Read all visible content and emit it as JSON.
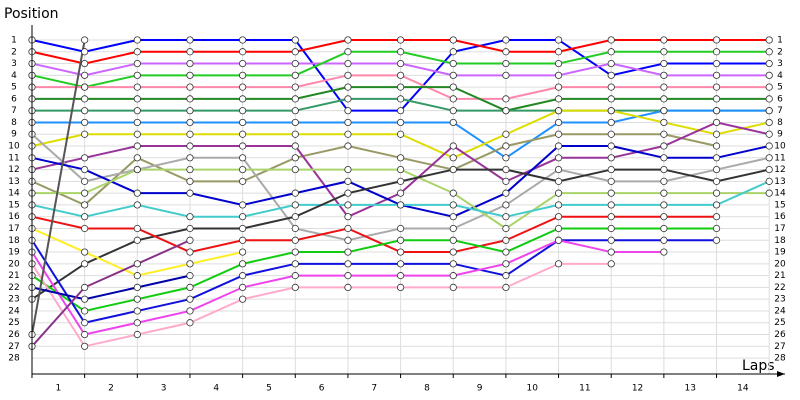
{
  "chart_data": {
    "type": "line",
    "title": "Position",
    "xlabel": "Laps",
    "x": [
      0,
      1,
      2,
      3,
      4,
      5,
      6,
      7,
      8,
      9,
      10,
      11,
      12,
      13,
      14
    ],
    "xlim": [
      0,
      14.3
    ],
    "xticks": [
      {
        "value": 0.5,
        "label": "1"
      },
      {
        "value": 1.5,
        "label": "2"
      },
      {
        "value": 2.5,
        "label": "3"
      },
      {
        "value": 3.5,
        "label": "4"
      },
      {
        "value": 4.5,
        "label": "5"
      },
      {
        "value": 5.5,
        "label": "6"
      },
      {
        "value": 6.5,
        "label": "7"
      },
      {
        "value": 7.5,
        "label": "8"
      },
      {
        "value": 8.5,
        "label": "9"
      },
      {
        "value": 9.5,
        "label": "10"
      },
      {
        "value": 10.5,
        "label": "11"
      },
      {
        "value": 11.5,
        "label": "12"
      },
      {
        "value": 12.5,
        "label": "13"
      },
      {
        "value": 13.5,
        "label": "14"
      }
    ],
    "ylim": [
      0,
      29.3
    ],
    "y_reversed": true,
    "yticks": [
      1,
      2,
      3,
      4,
      5,
      6,
      7,
      8,
      9,
      10,
      11,
      12,
      13,
      14,
      15,
      16,
      17,
      18,
      19,
      20,
      21,
      22,
      23,
      24,
      25,
      26,
      27,
      28
    ],
    "grid": true,
    "series": [
      {
        "color": "#0000ff",
        "values": [
          1,
          2,
          1,
          1,
          1,
          1,
          7,
          7,
          2,
          1,
          1,
          4,
          3,
          3,
          3
        ]
      },
      {
        "color": "#ff0000",
        "values": [
          2,
          3,
          2,
          2,
          2,
          2,
          1,
          1,
          1,
          2,
          2,
          1,
          1,
          1,
          1
        ]
      },
      {
        "color": "#cc66ff",
        "values": [
          3,
          4,
          3,
          3,
          3,
          3,
          3,
          3,
          4,
          4,
          4,
          3,
          4,
          4,
          4
        ]
      },
      {
        "color": "#22cc22",
        "values": [
          4,
          5,
          4,
          4,
          4,
          4,
          2,
          2,
          3,
          3,
          3,
          2,
          2,
          2,
          2
        ]
      },
      {
        "color": "#ff88aa",
        "values": [
          5,
          5,
          5,
          5,
          5,
          5,
          4,
          4,
          6,
          6,
          5,
          5,
          5,
          5,
          5
        ]
      },
      {
        "color": "#228822",
        "values": [
          6,
          6,
          6,
          6,
          6,
          6,
          5,
          5,
          5,
          7,
          6,
          6,
          6,
          6,
          6
        ]
      },
      {
        "color": "#339966",
        "values": [
          7,
          7,
          7,
          7,
          7,
          7,
          6,
          6,
          7,
          7,
          7,
          7,
          7,
          7,
          7
        ]
      },
      {
        "color": "#1e90ff",
        "values": [
          8,
          8,
          8,
          8,
          8,
          8,
          8,
          8,
          8,
          11,
          8,
          8,
          7,
          7,
          7
        ]
      },
      {
        "color": "#dddd00",
        "values": [
          10,
          9,
          9,
          9,
          9,
          9,
          9,
          9,
          11,
          9,
          7,
          7,
          8,
          9,
          8
        ]
      },
      {
        "color": "#999966",
        "values": [
          13,
          15,
          11,
          13,
          13,
          11,
          10,
          11,
          12,
          10,
          9,
          9,
          9,
          10,
          null
        ]
      },
      {
        "color": "#993399",
        "values": [
          12,
          11,
          10,
          10,
          10,
          10,
          16,
          14,
          10,
          13,
          11,
          11,
          10,
          8,
          9
        ]
      },
      {
        "color": "#aaaaaa",
        "values": [
          9,
          13,
          12,
          11,
          11,
          17,
          18,
          17,
          17,
          15,
          12,
          13,
          13,
          12,
          11
        ]
      },
      {
        "color": "#0000cc",
        "values": [
          11,
          12,
          14,
          14,
          15,
          14,
          13,
          15,
          16,
          14,
          10,
          10,
          11,
          11,
          10
        ]
      },
      {
        "color": "#aad46a",
        "values": [
          14,
          14,
          12,
          12,
          12,
          12,
          12,
          12,
          14,
          17,
          14,
          14,
          14,
          14,
          14
        ]
      },
      {
        "color": "#44cccc",
        "values": [
          15,
          16,
          15,
          16,
          16,
          15,
          15,
          15,
          15,
          16,
          15,
          15,
          15,
          15,
          13
        ]
      },
      {
        "color": "#333333",
        "values": [
          23,
          20,
          18,
          17,
          17,
          16,
          14,
          13,
          12,
          12,
          13,
          12,
          12,
          13,
          12
        ]
      },
      {
        "color": "#ee1111",
        "values": [
          16,
          17,
          17,
          19,
          18,
          18,
          17,
          19,
          19,
          18,
          16,
          16,
          16,
          16,
          null
        ]
      },
      {
        "color": "#11cc11",
        "values": [
          21,
          24,
          23,
          22,
          20,
          19,
          19,
          18,
          18,
          19,
          17,
          17,
          17,
          17,
          null
        ]
      },
      {
        "color": "#1111dd",
        "values": [
          18,
          25,
          24,
          23,
          21,
          20,
          20,
          20,
          20,
          21,
          18,
          18,
          18,
          18,
          null
        ]
      },
      {
        "color": "#ee44ee",
        "values": [
          19,
          26,
          25,
          24,
          22,
          21,
          21,
          21,
          21,
          20,
          18,
          19,
          19,
          null,
          null
        ]
      },
      {
        "color": "#ffaacc",
        "values": [
          20,
          27,
          26,
          25,
          23,
          22,
          22,
          22,
          22,
          22,
          20,
          20,
          null,
          null,
          null
        ]
      },
      {
        "color": "#ffee22",
        "values": [
          17,
          19,
          21,
          20,
          19,
          null,
          null,
          null,
          null,
          null,
          null,
          null,
          null,
          null,
          null
        ]
      },
      {
        "color": "#0000aa",
        "values": [
          22,
          23,
          22,
          21,
          null,
          null,
          null,
          null,
          null,
          null,
          null,
          null,
          null,
          null,
          null
        ]
      },
      {
        "color": "#555555",
        "values": [
          26,
          1,
          null,
          null,
          null,
          null,
          null,
          null,
          null,
          null,
          null,
          null,
          null,
          null,
          null
        ]
      },
      {
        "color": "#883388",
        "values": [
          27,
          22,
          20,
          18,
          null,
          null,
          null,
          null,
          null,
          null,
          null,
          null,
          null,
          null,
          null
        ]
      }
    ]
  }
}
